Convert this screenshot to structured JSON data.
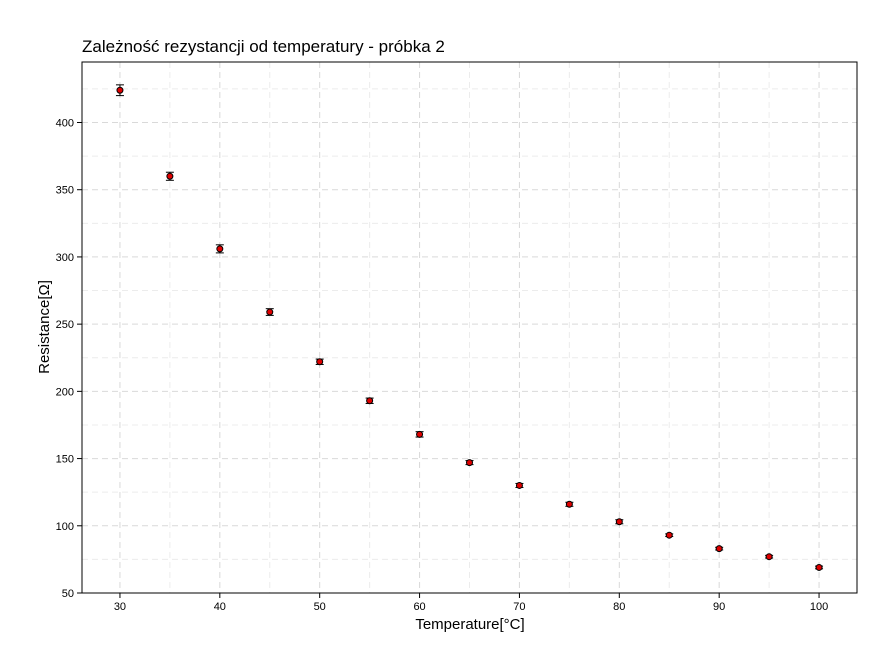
{
  "chart_data": {
    "type": "scatter",
    "title": "Zależność rezystancji od temperatury - próbka 2",
    "xlabel": "Temperature[°C]",
    "ylabel": "Resistance[Ω]",
    "xlim": [
      26.2,
      103.8
    ],
    "ylim": [
      50,
      445
    ],
    "x_ticks": [
      30,
      40,
      50,
      60,
      70,
      80,
      90,
      100
    ],
    "y_ticks": [
      50,
      100,
      150,
      200,
      250,
      300,
      350,
      400
    ],
    "grid": true,
    "grid_style": "dashed",
    "series": [
      {
        "point_color": "#e00000",
        "x": [
          30,
          35,
          40,
          45,
          50,
          55,
          60,
          65,
          70,
          75,
          80,
          85,
          90,
          95,
          100
        ],
        "y": [
          424,
          360,
          306,
          259,
          222,
          193,
          168,
          147,
          130,
          116,
          103,
          93,
          83,
          77,
          69
        ],
        "error": [
          4,
          3,
          3,
          2.5,
          2,
          2,
          2,
          1.5,
          1.5,
          1.5,
          1.5,
          1,
          1,
          1,
          1
        ]
      }
    ]
  }
}
